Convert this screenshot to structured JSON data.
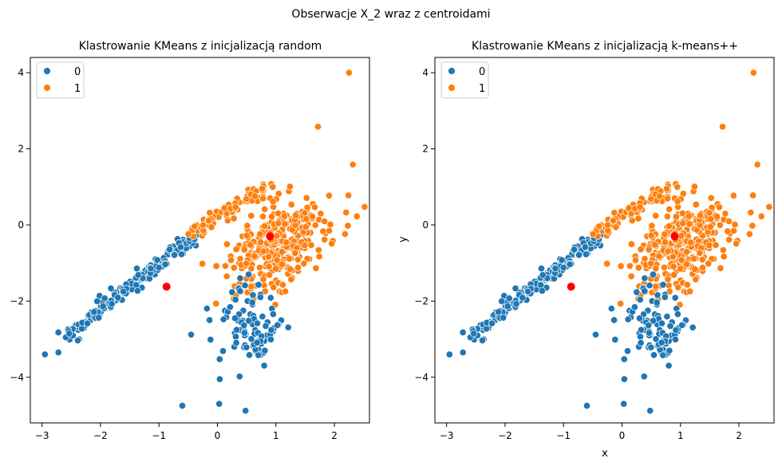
{
  "figure_title": "Obserwacje X_2 wraz z centroidami",
  "colors": {
    "cluster0": "#1f77b4",
    "cluster1": "#ff7f0e",
    "centroid": "#ff0000"
  },
  "chart_data": [
    {
      "type": "scatter",
      "title": "Klastrowanie KMeans z inicjalizacją random",
      "xlabel": "",
      "ylabel": "",
      "xlim": [
        -3.2,
        2.6
      ],
      "ylim": [
        -5.2,
        4.4
      ],
      "xticks": [
        -3,
        -2,
        -1,
        0,
        1,
        2
      ],
      "yticks": [
        -4,
        -2,
        0,
        2,
        4
      ],
      "legend": {
        "position": "top-left",
        "entries": [
          "0",
          "1"
        ]
      },
      "centroids": [
        [
          -0.87,
          -1.62
        ],
        [
          0.9,
          -0.3
        ]
      ],
      "outliers_cluster0": [
        [
          -2.95,
          -3.4
        ],
        [
          -2.72,
          -3.35
        ],
        [
          -0.6,
          -4.75
        ],
        [
          0.03,
          -4.7
        ],
        [
          0.48,
          -4.88
        ],
        [
          0.04,
          -4.05
        ],
        [
          0.38,
          -3.98
        ],
        [
          -0.45,
          -2.88
        ]
      ],
      "outliers_cluster1": [
        [
          2.25,
          4.0
        ],
        [
          2.23,
          -0.02
        ],
        [
          1.72,
          2.58
        ]
      ],
      "clusters": [
        {
          "name": "0",
          "description": "diagonal band from (-2.9,-3.4) to (-0.4,-0.3) plus compact group near (0.5,-2.8)"
        },
        {
          "name": "1",
          "description": "diagonal band from (-0.4,-0.3) to (0.9,1.0) plus dense group near (1.0,-0.6)"
        }
      ]
    },
    {
      "type": "scatter",
      "title": "Klastrowanie KMeans z inicjalizacją k-means++",
      "xlabel": "x",
      "ylabel": "y",
      "xlim": [
        -3.2,
        2.6
      ],
      "ylim": [
        -5.2,
        4.4
      ],
      "xticks": [
        -3,
        -2,
        -1,
        0,
        1,
        2
      ],
      "yticks": [
        -4,
        -2,
        0,
        2,
        4
      ],
      "legend": {
        "position": "top-left",
        "entries": [
          "0",
          "1"
        ]
      },
      "centroids": [
        [
          -0.87,
          -1.62
        ],
        [
          0.9,
          -0.3
        ]
      ],
      "outliers_cluster0": [
        [
          -2.95,
          -3.4
        ],
        [
          -2.72,
          -3.35
        ],
        [
          -0.6,
          -4.75
        ],
        [
          0.03,
          -4.7
        ],
        [
          0.48,
          -4.88
        ],
        [
          0.04,
          -4.05
        ],
        [
          0.38,
          -3.98
        ],
        [
          -0.45,
          -2.88
        ]
      ],
      "outliers_cluster1": [
        [
          2.25,
          4.0
        ],
        [
          2.23,
          -0.02
        ],
        [
          1.72,
          2.58
        ]
      ],
      "clusters": [
        {
          "name": "0",
          "description": "diagonal band from (-2.9,-3.4) to (-0.4,-0.3) plus compact group near (0.5,-2.8)"
        },
        {
          "name": "1",
          "description": "diagonal band from (-0.4,-0.3) to (0.9,1.0) plus dense group near (1.0,-0.6)"
        }
      ]
    }
  ]
}
